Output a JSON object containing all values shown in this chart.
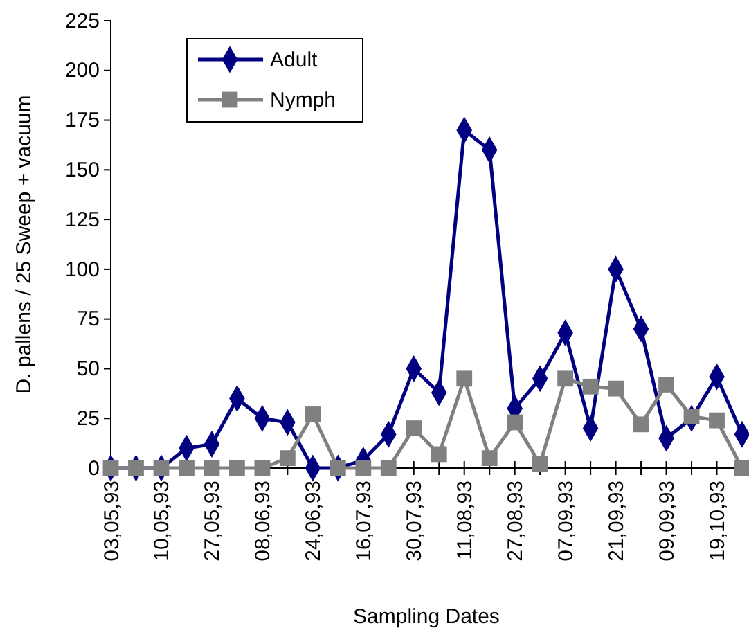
{
  "chart_data": {
    "type": "line",
    "xlabel": "Sampling Dates",
    "ylabel": "D. pallens / 25 Sweep + vacuum",
    "categories": [
      "03,05,93",
      null,
      "10,05,93",
      null,
      "27,05,93",
      null,
      "08,06,93",
      null,
      "24,06,93",
      null,
      "16,07,93",
      null,
      "30,07,93",
      null,
      "11,08,93",
      null,
      "27,08,93",
      null,
      "07,09,93",
      null,
      "21,09,93",
      null,
      "09,09,93",
      null,
      "19,10,93",
      null
    ],
    "series": [
      {
        "name": "Adult",
        "color": "#000080",
        "marker": "diamond",
        "values": [
          0,
          0,
          0,
          10,
          12,
          35,
          25,
          23,
          0,
          0,
          4,
          17,
          50,
          38,
          170,
          160,
          30,
          45,
          68,
          20,
          100,
          70,
          15,
          25,
          46,
          17
        ]
      },
      {
        "name": "Nymph",
        "color": "#808080",
        "marker": "square",
        "values": [
          0,
          0,
          0,
          0,
          0,
          0,
          0,
          5,
          27,
          0,
          0,
          0,
          20,
          7,
          45,
          5,
          23,
          2,
          45,
          41,
          40,
          22,
          42,
          26,
          24,
          0
        ]
      }
    ],
    "ylim": [
      0,
      225
    ],
    "yticks": [
      0,
      25,
      50,
      75,
      100,
      125,
      150,
      175,
      200,
      225
    ],
    "grid": false,
    "legend": "top left"
  }
}
